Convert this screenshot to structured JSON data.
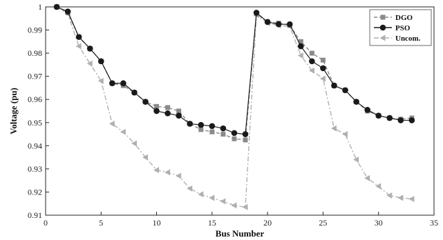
{
  "chart_data": {
    "type": "line",
    "xlabel": "Bus Number",
    "ylabel": "Voltage (pu)",
    "xlim": [
      0,
      35
    ],
    "ylim": [
      0.91,
      1.0
    ],
    "xticks": [
      0,
      5,
      10,
      15,
      20,
      25,
      30,
      35
    ],
    "yticks": [
      0.91,
      0.92,
      0.93,
      0.94,
      0.95,
      0.96,
      0.97,
      0.98,
      0.99,
      1
    ],
    "ytick_labels": [
      "0.91",
      "0.92",
      "0.93",
      "0.94",
      "0.95",
      "0.96",
      "0.97",
      "0.98",
      "0.99",
      "1"
    ],
    "grid": false,
    "legend": "top-right",
    "x": [
      1,
      2,
      3,
      4,
      5,
      6,
      7,
      8,
      9,
      10,
      11,
      12,
      13,
      14,
      15,
      16,
      17,
      18,
      19,
      20,
      21,
      22,
      23,
      24,
      25,
      26,
      27,
      28,
      29,
      30,
      31,
      32,
      33
    ],
    "series": [
      {
        "name": "DGO",
        "marker": "square",
        "line": "dashed",
        "color": "#8a8a8a",
        "values": [
          1.0,
          0.9975,
          0.987,
          0.982,
          0.9765,
          0.967,
          0.966,
          0.963,
          0.959,
          0.957,
          0.9565,
          0.955,
          0.9495,
          0.947,
          0.946,
          0.945,
          0.943,
          0.9425,
          0.997,
          0.9935,
          0.993,
          0.992,
          0.985,
          0.98,
          0.977,
          0.966,
          0.964,
          0.959,
          0.955,
          0.953,
          0.952,
          0.9515,
          0.952
        ]
      },
      {
        "name": "PSO",
        "marker": "circle",
        "line": "solid",
        "color": "#1a1a1a",
        "values": [
          1.0,
          0.998,
          0.987,
          0.982,
          0.9765,
          0.967,
          0.967,
          0.963,
          0.959,
          0.955,
          0.954,
          0.953,
          0.9495,
          0.949,
          0.9485,
          0.9475,
          0.9455,
          0.945,
          0.9975,
          0.9935,
          0.9925,
          0.9925,
          0.983,
          0.9765,
          0.9735,
          0.966,
          0.964,
          0.959,
          0.9555,
          0.953,
          0.952,
          0.951,
          0.951
        ]
      },
      {
        "name": "Uncom.",
        "marker": "triangle-left",
        "line": "dash-dot",
        "color": "#b0b0b0",
        "values": [
          1.0,
          0.997,
          0.983,
          0.9755,
          0.968,
          0.9495,
          0.946,
          0.941,
          0.935,
          0.9295,
          0.9285,
          0.927,
          0.9215,
          0.919,
          0.9175,
          0.916,
          0.9142,
          0.9135,
          0.9965,
          0.993,
          0.992,
          0.9915,
          0.979,
          0.9725,
          0.969,
          0.9475,
          0.945,
          0.934,
          0.926,
          0.9225,
          0.9185,
          0.9175,
          0.917
        ]
      }
    ]
  }
}
